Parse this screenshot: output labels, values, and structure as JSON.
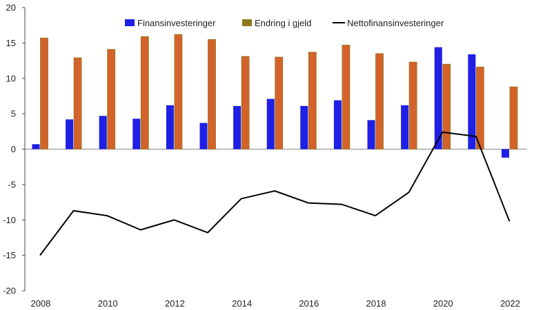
{
  "chart_data": {
    "type": "bar",
    "categories": [
      "2008",
      "2009",
      "2010",
      "2011",
      "2012",
      "2013",
      "2014",
      "2015",
      "2016",
      "2017",
      "2018",
      "2019",
      "2020",
      "2021",
      "2022"
    ],
    "x_tick_labels": [
      "2008",
      "2010",
      "2012",
      "2014",
      "2016",
      "2018",
      "2020",
      "2022"
    ],
    "ylim": [
      -20,
      20
    ],
    "y_ticks": [
      20,
      15,
      10,
      5,
      0,
      -5,
      -10,
      -15,
      -20
    ],
    "grid": false,
    "legend_position": "top",
    "series": [
      {
        "name": "Finansinvesteringer",
        "kind": "bar",
        "color": "#1f1fe6",
        "values": [
          0.7,
          4.2,
          4.7,
          4.3,
          6.2,
          3.7,
          6.1,
          7.1,
          6.1,
          6.9,
          4.1,
          6.2,
          14.4,
          13.4,
          -1.2
        ]
      },
      {
        "name": "Endring i gjeld",
        "kind": "bar",
        "color": "#d4622a",
        "legend_color": "#8b7a1e",
        "values": [
          15.7,
          12.9,
          14.1,
          15.9,
          16.2,
          15.5,
          13.1,
          13.0,
          13.7,
          14.7,
          13.5,
          12.3,
          12.0,
          11.6,
          8.8
        ]
      },
      {
        "name": "Nettofinansinvesteringer",
        "kind": "line",
        "color": "#000000",
        "values": [
          -15.0,
          -8.7,
          -9.4,
          -11.4,
          -10.0,
          -11.8,
          -7.0,
          -5.9,
          -7.6,
          -7.8,
          -9.4,
          -6.1,
          2.4,
          1.8,
          -10.2
        ]
      }
    ]
  }
}
